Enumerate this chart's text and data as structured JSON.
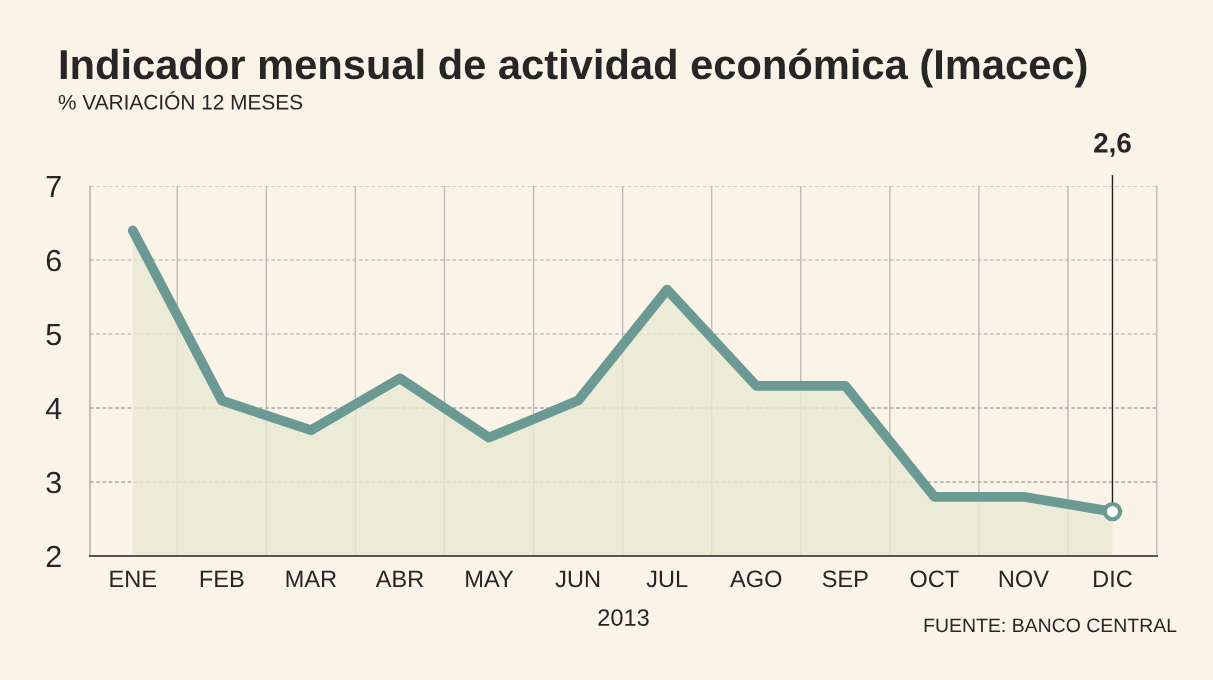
{
  "chart_data": {
    "type": "area",
    "title": "Indicador mensual de actividad económica (Imacec)",
    "subtitle": "% VARIACIÓN 12 MESES",
    "xlabel": "2013",
    "categories": [
      "ENE",
      "FEB",
      "MAR",
      "ABR",
      "MAY",
      "JUN",
      "JUL",
      "AGO",
      "SEP",
      "OCT",
      "NOV",
      "DIC"
    ],
    "series": [
      {
        "color": "#6b9a94",
        "values": [
          6.4,
          4.1,
          3.7,
          4.4,
          3.6,
          4.1,
          5.6,
          4.3,
          4.3,
          2.8,
          2.8,
          2.6
        ]
      }
    ],
    "ylim": [
      2,
      7
    ],
    "yticks": [
      2,
      3,
      4,
      5,
      6,
      7
    ],
    "grid": true,
    "annotations": [
      {
        "text": "2,6",
        "x": "DIC",
        "y": 2.6
      },
      "FUENTE: BANCO CENTRAL"
    ]
  }
}
